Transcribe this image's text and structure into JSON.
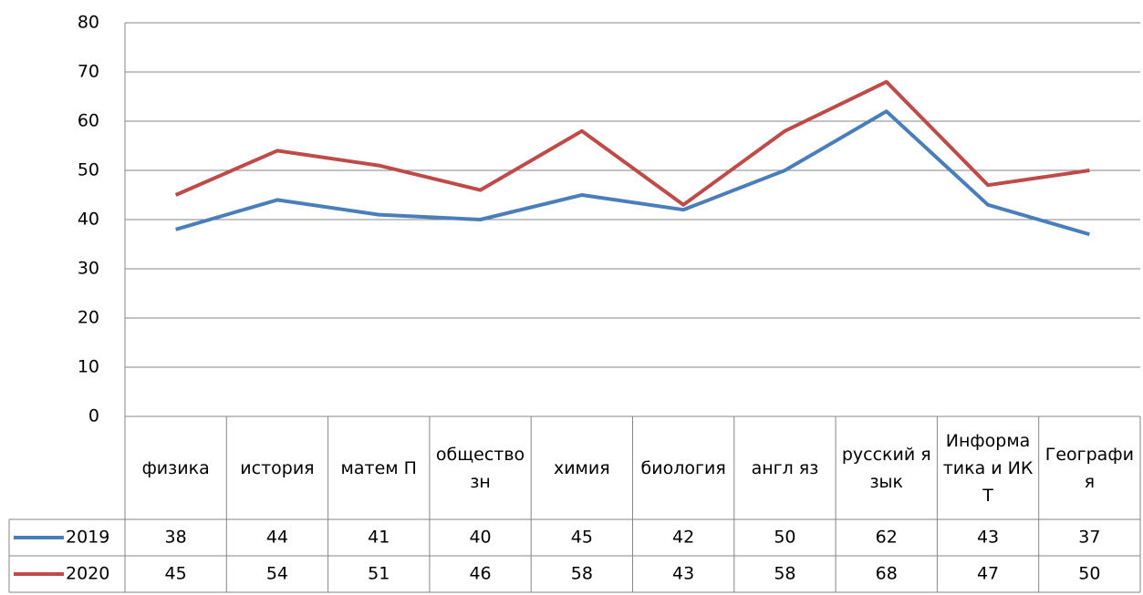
{
  "chart_data": {
    "type": "line",
    "categories": [
      "физика",
      "история",
      "матем П",
      "обществозн",
      "химия",
      "биология",
      "англ яз",
      "русский язык",
      "Информатика и ИКТ",
      "География"
    ],
    "series": [
      {
        "name": "2019",
        "color": "#4a7ebb",
        "values": [
          38,
          44,
          41,
          40,
          45,
          42,
          50,
          62,
          43,
          37
        ]
      },
      {
        "name": "2020",
        "color": "#be4b48",
        "values": [
          45,
          54,
          51,
          46,
          58,
          43,
          58,
          68,
          47,
          50
        ]
      }
    ],
    "ylim": [
      0,
      80
    ],
    "yticks": [
      0,
      10,
      20,
      30,
      40,
      50,
      60,
      70,
      80
    ],
    "grid": true
  }
}
